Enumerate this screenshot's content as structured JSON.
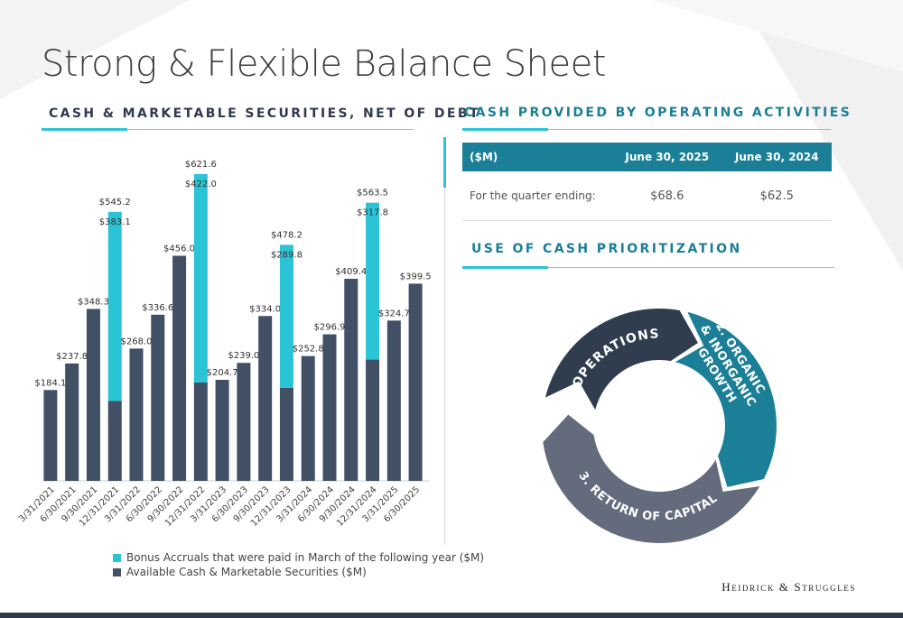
{
  "page": {
    "title": "Strong & Flexible Balance Sheet",
    "logo_text": "Heidrick & Struggles"
  },
  "left_section": {
    "heading": "CASH & MARKETABLE SECURITIES, NET OF DEBT"
  },
  "cash_section": {
    "heading": "CASH PROVIDED BY OPERATING ACTIVITIES",
    "table": {
      "headers": [
        "($M)",
        "June 30, 2025",
        "June 30, 2024"
      ],
      "rows": [
        [
          "For the quarter ending:",
          "$68.6",
          "$62.5"
        ]
      ]
    }
  },
  "priority_section": {
    "heading": "USE OF CASH PRIORITIZATION",
    "segments": [
      "1. OPERATIONS",
      "2. ORGANIC & INORGANIC GROWTH",
      "3. RETURN OF CAPITAL"
    ],
    "colors": [
      "#2f3d4f",
      "#1b7f97",
      "#636b7c"
    ]
  },
  "colors": {
    "heading_dark": "#2f3b4c",
    "heading_teal": "#1b7f97",
    "accent_cyan": "#2bc4d6"
  },
  "chart_data": {
    "type": "bar",
    "stacked": true,
    "categories": [
      "3/31/2021",
      "6/30/2021",
      "9/30/2021",
      "12/31/2021",
      "3/31/2022",
      "6/30/2022",
      "9/30/2022",
      "12/31/2022",
      "3/31/2023",
      "6/30/2023",
      "9/30/2023",
      "12/31/2023",
      "3/31/2024",
      "6/30/2024",
      "9/30/2024",
      "12/31/2024",
      "3/31/2025",
      "6/30/2025"
    ],
    "series": [
      {
        "name": "Available Cash & Marketable Securities ($M)",
        "color": "#425066",
        "values": [
          184.1,
          237.8,
          348.3,
          161.9,
          268.0,
          336.6,
          456.0,
          199.6,
          204.7,
          239.0,
          334.0,
          188.4,
          252.8,
          296.9,
          409.4,
          245.7,
          324.7,
          399.5
        ],
        "labels": [
          "$184.1",
          "$237.8",
          "$348.3",
          "",
          "$268.0",
          "$336.6",
          "$456.0",
          "",
          "$204.7",
          "$239.0",
          "$334.0",
          "",
          "$252.8",
          "$296.9",
          "$409.4",
          "",
          "$324.7",
          "$399.5"
        ]
      },
      {
        "name": "Bonus Accruals that were paid in March of the following year ($M)",
        "color": "#2bc4d6",
        "values": [
          0,
          0,
          0,
          383.1,
          0,
          0,
          0,
          422.0,
          0,
          0,
          0,
          289.8,
          0,
          0,
          0,
          317.8,
          0,
          0
        ],
        "labels": [
          "",
          "",
          "",
          "$383.1",
          "",
          "",
          "",
          "$422.0",
          "",
          "",
          "",
          "$289.8",
          "",
          "",
          "",
          "$317.8",
          "",
          ""
        ]
      }
    ],
    "total_labels": [
      "",
      "",
      "",
      "$545.2",
      "",
      "",
      "",
      "$621.6",
      "",
      "",
      "",
      "$478.2",
      "",
      "",
      "",
      "$563.5",
      "",
      ""
    ],
    "ylim": [
      0,
      700
    ],
    "grid": false,
    "legend_order": [
      1,
      0
    ],
    "legend_position": "bottom-left"
  }
}
